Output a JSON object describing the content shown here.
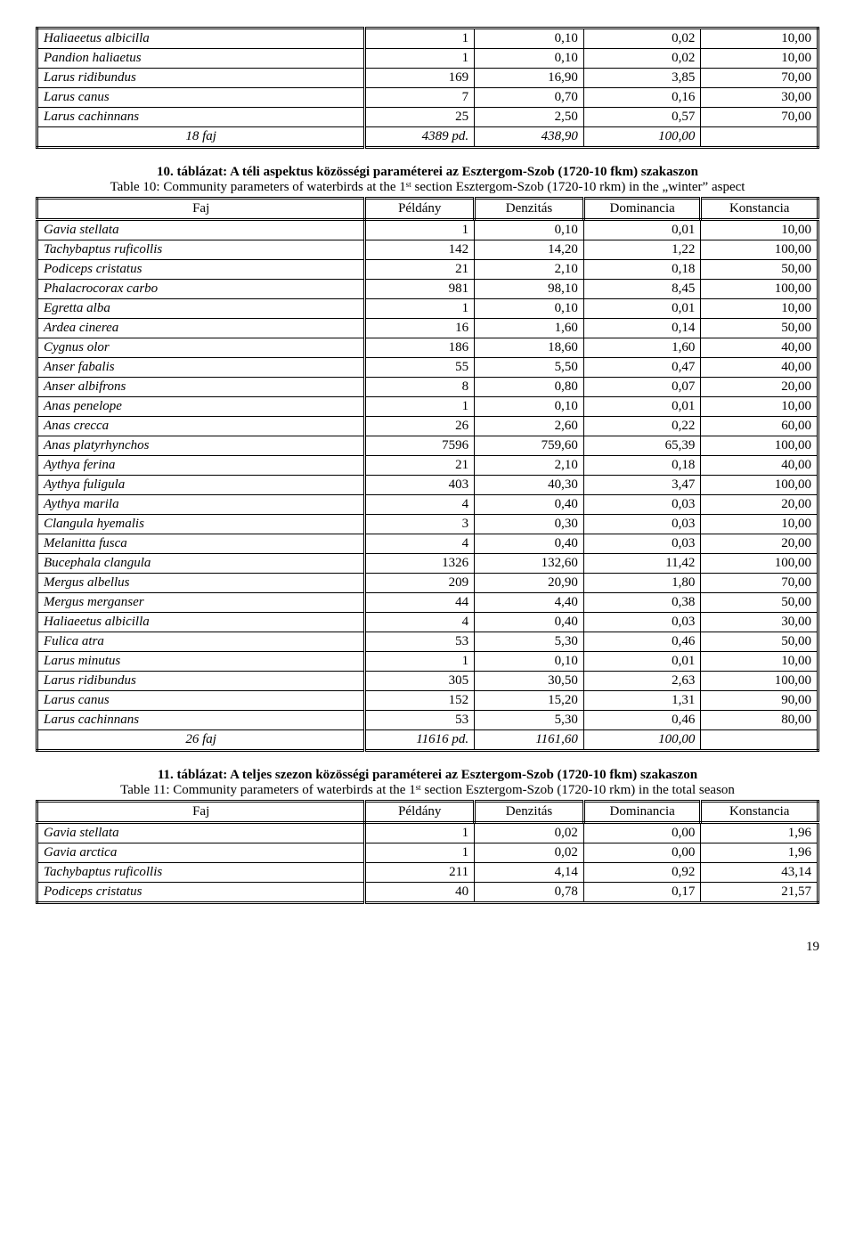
{
  "table_top": {
    "rows": [
      {
        "sp": "Haliaeetus albicilla",
        "c2": "1",
        "c3": "0,10",
        "c4": "0,02",
        "c5": "10,00"
      },
      {
        "sp": "Pandion haliaetus",
        "c2": "1",
        "c3": "0,10",
        "c4": "0,02",
        "c5": "10,00"
      },
      {
        "sp": "Larus ridibundus",
        "c2": "169",
        "c3": "16,90",
        "c4": "3,85",
        "c5": "70,00"
      },
      {
        "sp": "Larus canus",
        "c2": "7",
        "c3": "0,70",
        "c4": "0,16",
        "c5": "30,00"
      },
      {
        "sp": "Larus cachinnans",
        "c2": "25",
        "c3": "2,50",
        "c4": "0,57",
        "c5": "70,00"
      }
    ],
    "summary": {
      "sp": "18 faj",
      "c2": "4389 pd.",
      "c3": "438,90",
      "c4": "100,00",
      "c5": ""
    }
  },
  "caption10": {
    "bold": "10. táblázat: A téli aspektus közösségi paraméterei az Esztergom-Szob (1720-10 fkm) szakaszon",
    "plain": "Table 10: Community parameters of waterbirds at the 1ˢᵗ section Esztergom-Szob (1720-10 rkm) in the „winter” aspect"
  },
  "headers": {
    "h1": "Faj",
    "h2": "Példány",
    "h3": "Denzitás",
    "h4": "Dominancia",
    "h5": "Konstancia"
  },
  "table10": {
    "rows": [
      {
        "sp": "Gavia stellata",
        "c2": "1",
        "c3": "0,10",
        "c4": "0,01",
        "c5": "10,00"
      },
      {
        "sp": "Tachybaptus ruficollis",
        "c2": "142",
        "c3": "14,20",
        "c4": "1,22",
        "c5": "100,00"
      },
      {
        "sp": "Podiceps cristatus",
        "c2": "21",
        "c3": "2,10",
        "c4": "0,18",
        "c5": "50,00"
      },
      {
        "sp": "Phalacrocorax carbo",
        "c2": "981",
        "c3": "98,10",
        "c4": "8,45",
        "c5": "100,00"
      },
      {
        "sp": "Egretta alba",
        "c2": "1",
        "c3": "0,10",
        "c4": "0,01",
        "c5": "10,00"
      },
      {
        "sp": "Ardea cinerea",
        "c2": "16",
        "c3": "1,60",
        "c4": "0,14",
        "c5": "50,00"
      },
      {
        "sp": "Cygnus olor",
        "c2": "186",
        "c3": "18,60",
        "c4": "1,60",
        "c5": "40,00"
      },
      {
        "sp": "Anser fabalis",
        "c2": "55",
        "c3": "5,50",
        "c4": "0,47",
        "c5": "40,00"
      },
      {
        "sp": "Anser albifrons",
        "c2": "8",
        "c3": "0,80",
        "c4": "0,07",
        "c5": "20,00"
      },
      {
        "sp": "Anas penelope",
        "c2": "1",
        "c3": "0,10",
        "c4": "0,01",
        "c5": "10,00"
      },
      {
        "sp": "Anas crecca",
        "c2": "26",
        "c3": "2,60",
        "c4": "0,22",
        "c5": "60,00"
      },
      {
        "sp": "Anas platyrhynchos",
        "c2": "7596",
        "c3": "759,60",
        "c4": "65,39",
        "c5": "100,00"
      },
      {
        "sp": "Aythya ferina",
        "c2": "21",
        "c3": "2,10",
        "c4": "0,18",
        "c5": "40,00"
      },
      {
        "sp": "Aythya fuligula",
        "c2": "403",
        "c3": "40,30",
        "c4": "3,47",
        "c5": "100,00"
      },
      {
        "sp": "Aythya marila",
        "c2": "4",
        "c3": "0,40",
        "c4": "0,03",
        "c5": "20,00"
      },
      {
        "sp": "Clangula hyemalis",
        "c2": "3",
        "c3": "0,30",
        "c4": "0,03",
        "c5": "10,00"
      },
      {
        "sp": "Melanitta fusca",
        "c2": "4",
        "c3": "0,40",
        "c4": "0,03",
        "c5": "20,00"
      },
      {
        "sp": "Bucephala clangula",
        "c2": "1326",
        "c3": "132,60",
        "c4": "11,42",
        "c5": "100,00"
      },
      {
        "sp": "Mergus albellus",
        "c2": "209",
        "c3": "20,90",
        "c4": "1,80",
        "c5": "70,00"
      },
      {
        "sp": "Mergus merganser",
        "c2": "44",
        "c3": "4,40",
        "c4": "0,38",
        "c5": "50,00"
      },
      {
        "sp": "Haliaeetus albicilla",
        "c2": "4",
        "c3": "0,40",
        "c4": "0,03",
        "c5": "30,00"
      },
      {
        "sp": "Fulica atra",
        "c2": "53",
        "c3": "5,30",
        "c4": "0,46",
        "c5": "50,00"
      },
      {
        "sp": "Larus minutus",
        "c2": "1",
        "c3": "0,10",
        "c4": "0,01",
        "c5": "10,00"
      },
      {
        "sp": "Larus ridibundus",
        "c2": "305",
        "c3": "30,50",
        "c4": "2,63",
        "c5": "100,00"
      },
      {
        "sp": "Larus canus",
        "c2": "152",
        "c3": "15,20",
        "c4": "1,31",
        "c5": "90,00"
      },
      {
        "sp": "Larus cachinnans",
        "c2": "53",
        "c3": "5,30",
        "c4": "0,46",
        "c5": "80,00"
      }
    ],
    "summary": {
      "sp": "26 faj",
      "c2": "11616 pd.",
      "c3": "1161,60",
      "c4": "100,00",
      "c5": ""
    }
  },
  "caption11": {
    "bold": "11. táblázat: A teljes szezon közösségi paraméterei az Esztergom-Szob (1720-10 fkm) szakaszon",
    "plain": "Table 11: Community parameters of waterbirds at the 1ˢᵗ section Esztergom-Szob (1720-10 rkm) in the total season"
  },
  "table11": {
    "rows": [
      {
        "sp": "Gavia stellata",
        "c2": "1",
        "c3": "0,02",
        "c4": "0,00",
        "c5": "1,96"
      },
      {
        "sp": "Gavia arctica",
        "c2": "1",
        "c3": "0,02",
        "c4": "0,00",
        "c5": "1,96"
      },
      {
        "sp": "Tachybaptus ruficollis",
        "c2": "211",
        "c3": "4,14",
        "c4": "0,92",
        "c5": "43,14"
      },
      {
        "sp": "Podiceps cristatus",
        "c2": "40",
        "c3": "0,78",
        "c4": "0,17",
        "c5": "21,57"
      }
    ]
  },
  "pagenum": "19"
}
